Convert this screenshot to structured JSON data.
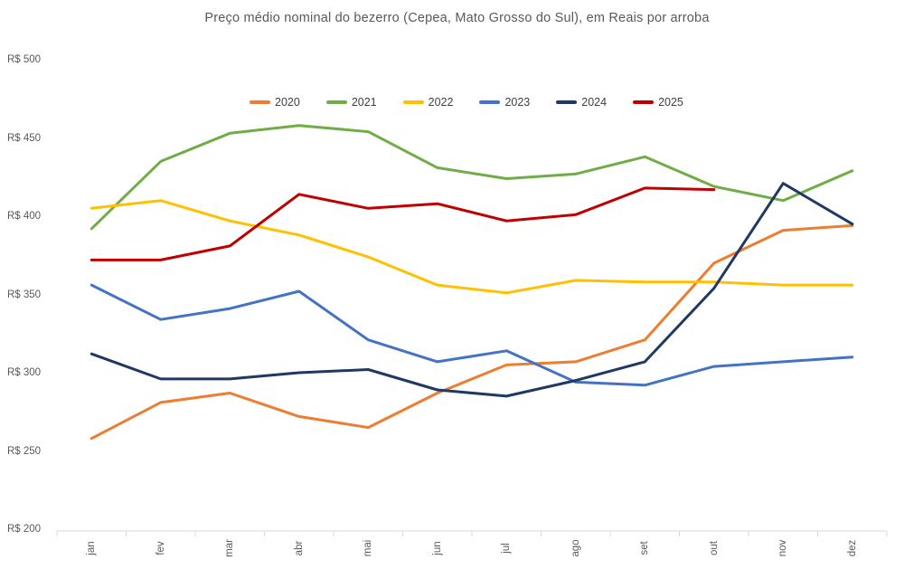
{
  "title": "Preço médio nominal do bezerro (Cepea, Mato Grosso do Sul), em Reais por arroba",
  "chart_data": {
    "type": "line",
    "title": "Preço médio nominal do bezerro (Cepea, Mato Grosso do Sul), em Reais por arroba",
    "categories": [
      "jan",
      "fev",
      "mar",
      "abr",
      "mai",
      "jun",
      "jul",
      "ago",
      "set",
      "out",
      "nov",
      "dez"
    ],
    "series": [
      {
        "name": "2020",
        "color": "#ED7D31",
        "values": [
          258,
          281,
          287,
          272,
          265,
          287,
          305,
          307,
          321,
          370,
          391,
          394
        ]
      },
      {
        "name": "2021",
        "color": "#70AD47",
        "values": [
          392,
          435,
          453,
          458,
          454,
          431,
          424,
          427,
          438,
          419,
          410,
          429
        ]
      },
      {
        "name": "2022",
        "color": "#FFC000",
        "values": [
          405,
          410,
          397,
          388,
          374,
          356,
          351,
          359,
          358,
          358,
          356,
          356
        ]
      },
      {
        "name": "2023",
        "color": "#4472C4",
        "values": [
          356,
          334,
          341,
          352,
          321,
          307,
          314,
          294,
          292,
          304,
          307,
          310
        ]
      },
      {
        "name": "2024",
        "color": "#1F3864",
        "values": [
          312,
          296,
          296,
          300,
          302,
          289,
          285,
          295,
          307,
          354,
          421,
          395
        ]
      },
      {
        "name": "2025",
        "color": "#C00000",
        "values": [
          372,
          372,
          381,
          414,
          405,
          408,
          397,
          401,
          418,
          417,
          null,
          null
        ]
      }
    ],
    "ytick_labels": [
      "R$ 500",
      "R$ 450",
      "R$ 400",
      "R$ 350",
      "R$ 300",
      "R$ 250",
      "R$ 200"
    ],
    "yticks": [
      500,
      450,
      400,
      350,
      300,
      250,
      200
    ],
    "ylim": [
      200,
      500
    ],
    "xlabel": "",
    "ylabel": "",
    "grid": false,
    "legend_position": "top",
    "axis_color": "#D9D9D9",
    "text_color": "#595959"
  }
}
